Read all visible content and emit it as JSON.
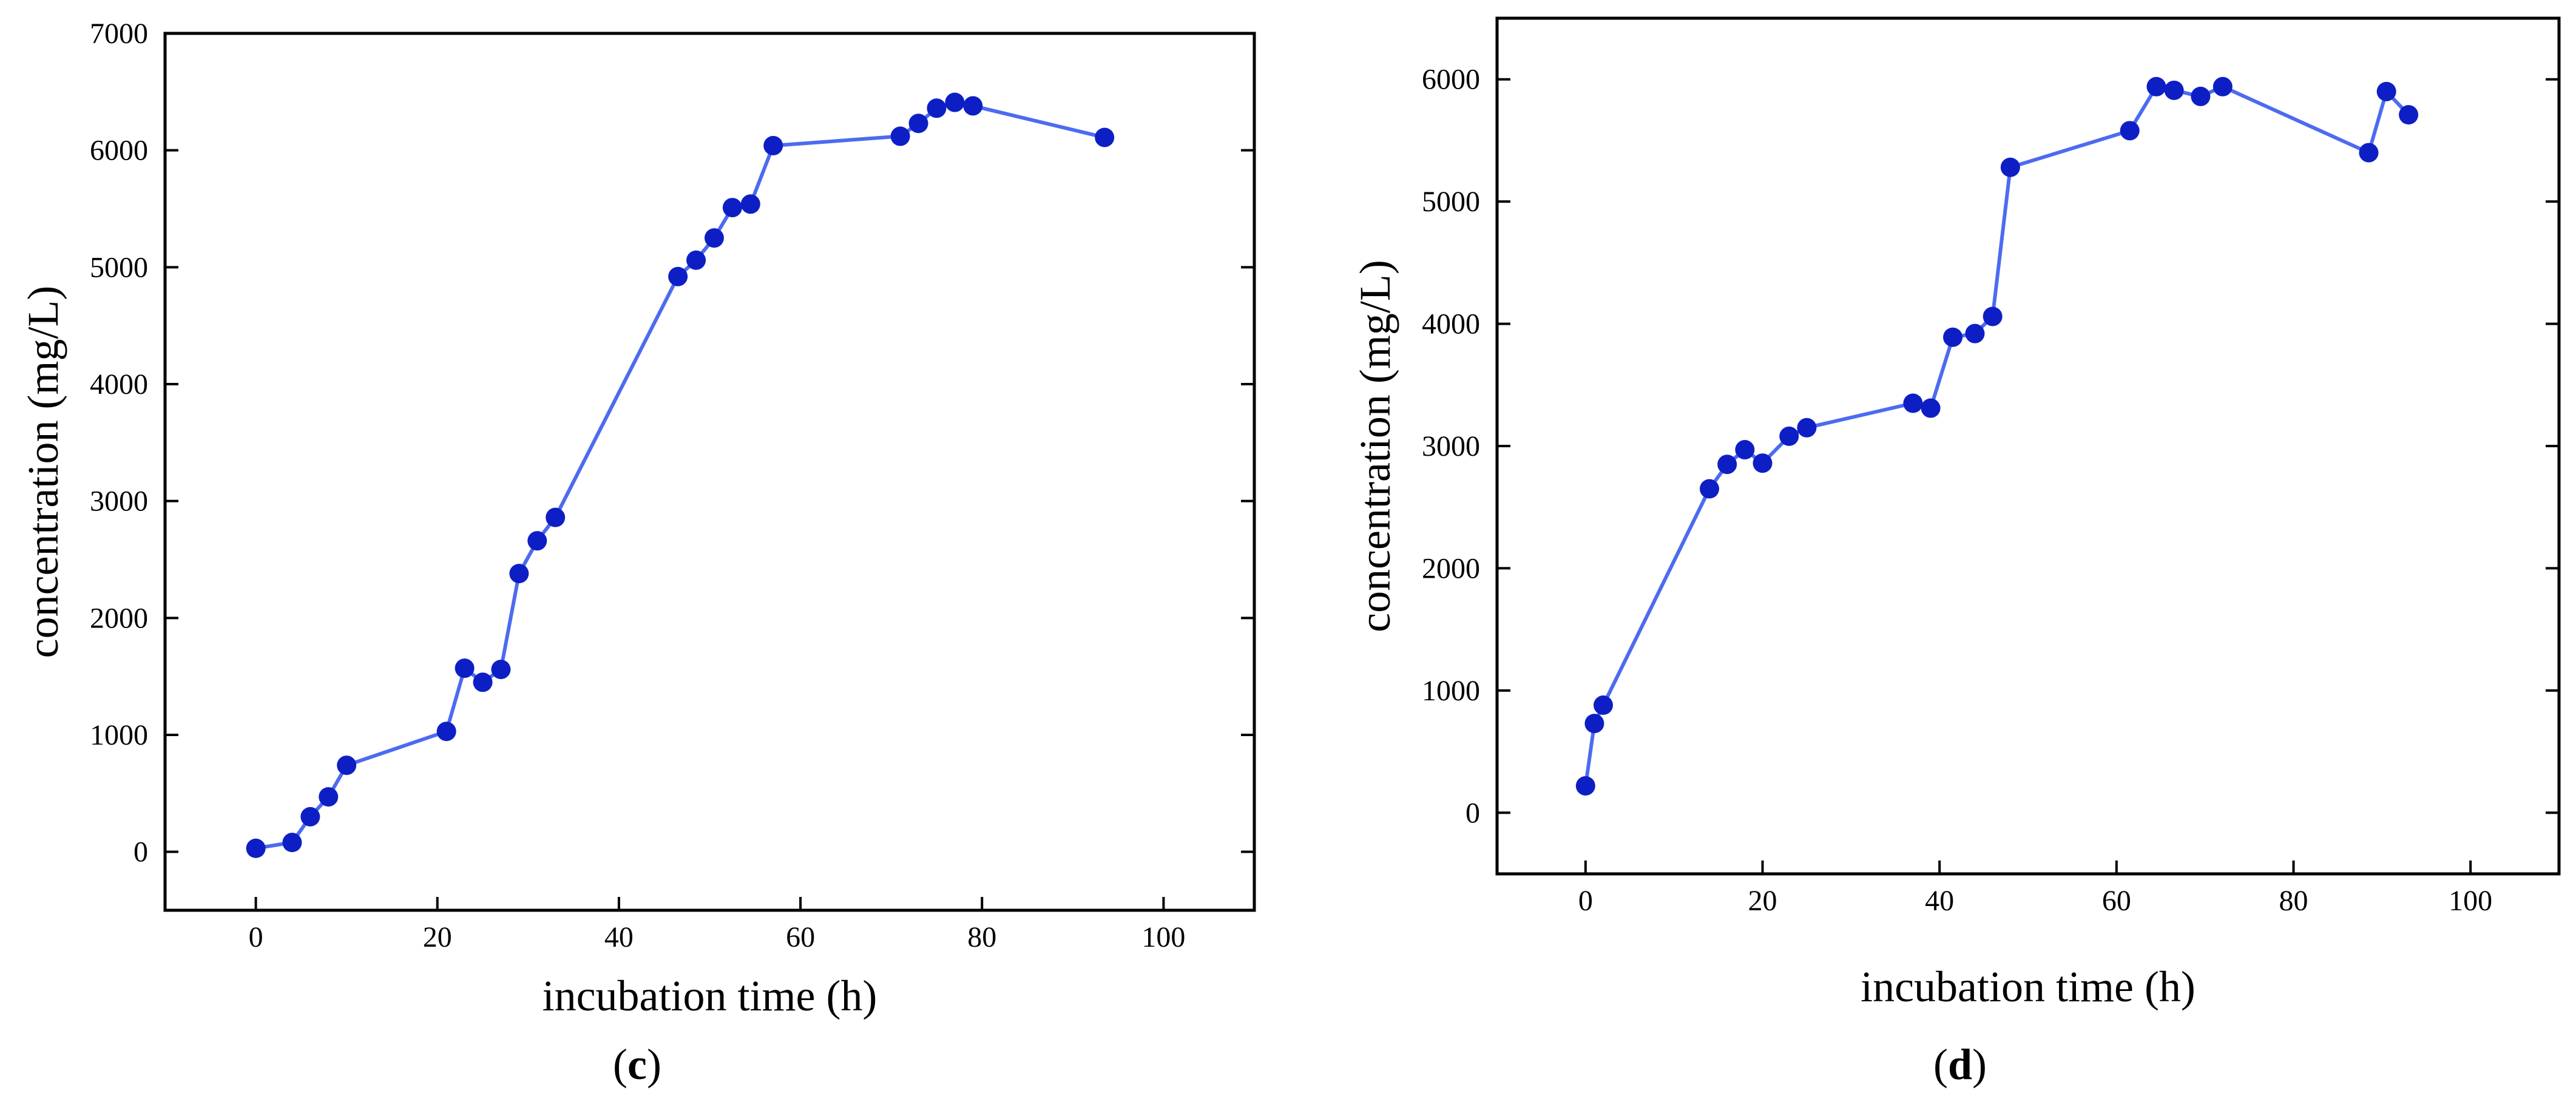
{
  "chart_data": [
    {
      "type": "line",
      "panel_label": "c",
      "title": "",
      "xlabel": "incubation time (h)",
      "ylabel": "concentration (mg/L)",
      "xlim": [
        -10,
        110
      ],
      "ylim": [
        -500,
        7000
      ],
      "xticks": [
        0,
        20,
        40,
        60,
        80,
        100
      ],
      "yticks": [
        0,
        1000,
        2000,
        3000,
        4000,
        5000,
        6000,
        7000
      ],
      "grid": false,
      "legend": "none",
      "line_color": "#4d6bf0",
      "marker_color": "#0d1fc4",
      "series": [
        {
          "name": "concentration",
          "x": [
            0,
            4,
            6,
            8,
            10,
            21,
            23,
            25,
            27,
            29,
            31,
            33,
            46.5,
            48.5,
            50.5,
            52.5,
            54.5,
            57,
            71,
            73,
            75,
            77,
            79,
            93.5
          ],
          "y": [
            30,
            80,
            300,
            470,
            740,
            1030,
            1570,
            1450,
            1560,
            2380,
            2660,
            2860,
            4920,
            5060,
            5250,
            5510,
            5540,
            6040,
            6120,
            6230,
            6360,
            6410,
            6380,
            6110
          ]
        }
      ]
    },
    {
      "type": "line",
      "panel_label": "d",
      "title": "",
      "xlabel": "incubation time (h)",
      "ylabel": "concentration (mg/L)",
      "xlim": [
        -10,
        110
      ],
      "ylim": [
        -500,
        6500
      ],
      "xticks": [
        0,
        20,
        40,
        60,
        80,
        100
      ],
      "yticks": [
        0,
        1000,
        2000,
        3000,
        4000,
        5000,
        6000
      ],
      "grid": false,
      "legend": "none",
      "line_color": "#4d6bf0",
      "marker_color": "#0d1fc4",
      "series": [
        {
          "name": "concentration",
          "x": [
            0,
            1,
            2,
            14,
            16,
            18,
            20,
            23,
            25,
            37,
            39,
            41.5,
            44,
            46,
            48,
            61.5,
            64.5,
            66.5,
            69.5,
            72,
            88.5,
            90.5,
            93
          ],
          "y": [
            220,
            730,
            880,
            2650,
            2850,
            2970,
            2860,
            3080,
            3150,
            3350,
            3310,
            3890,
            3920,
            4060,
            5280,
            5580,
            5940,
            5910,
            5860,
            5940,
            5400,
            5900,
            5710
          ]
        }
      ]
    }
  ]
}
